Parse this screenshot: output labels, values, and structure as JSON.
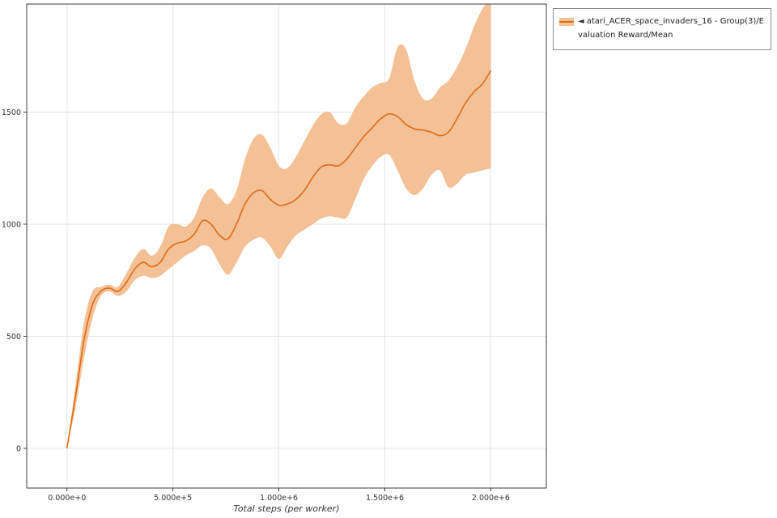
{
  "page": {
    "background": "#ffffff"
  },
  "legend": {
    "marker": "◄",
    "label": "atari_ACER_space_invaders_16 - Group(3)/Evaluation Reward/Mean",
    "swatch_fill_color": "#f4c095",
    "swatch_line_color": "#dd6c16"
  },
  "chart_data": {
    "type": "line",
    "title": "",
    "xlabel": "Total steps (per worker)",
    "ylabel": "",
    "grid": true,
    "legend_position": "top-right outside plot",
    "xlim": [
      -190000,
      2262000
    ],
    "ylim": [
      -177,
      1982
    ],
    "xticks": [
      0,
      500000,
      1000000,
      1500000,
      2000000
    ],
    "xtick_labels": [
      "0.000e+0",
      "5.000e+5",
      "1.000e+6",
      "1.500e+6",
      "2.000e+6"
    ],
    "yticks": [
      0,
      500,
      1000,
      1500
    ],
    "ytick_labels": [
      "0",
      "500",
      "1000",
      "1500"
    ],
    "colors": {
      "line": "#dd6c16",
      "band": "#f4c095",
      "grid": "#e4e4e4",
      "spine": "#262626",
      "tick_label": "#333333"
    },
    "series": [
      {
        "name": "atari_ACER_space_invaders_16 - Group(3)/Evaluation Reward/Mean",
        "color": "#dd6c16",
        "band_color": "#f4c095",
        "x": [
          0,
          40000,
          80000,
          120000,
          160000,
          200000,
          240000,
          280000,
          320000,
          360000,
          400000,
          440000,
          480000,
          520000,
          560000,
          600000,
          640000,
          680000,
          720000,
          760000,
          800000,
          840000,
          880000,
          920000,
          960000,
          1000000,
          1040000,
          1080000,
          1120000,
          1160000,
          1200000,
          1240000,
          1280000,
          1320000,
          1360000,
          1400000,
          1440000,
          1480000,
          1520000,
          1560000,
          1600000,
          1640000,
          1680000,
          1720000,
          1760000,
          1800000,
          1840000,
          1880000,
          1920000,
          1960000,
          2000000
        ],
        "mean": [
          0,
          230,
          480,
          640,
          700,
          715,
          700,
          740,
          800,
          830,
          810,
          830,
          890,
          915,
          925,
          955,
          1015,
          1000,
          950,
          935,
          1000,
          1090,
          1140,
          1150,
          1110,
          1085,
          1090,
          1110,
          1150,
          1210,
          1255,
          1265,
          1260,
          1290,
          1340,
          1390,
          1430,
          1470,
          1492,
          1480,
          1445,
          1425,
          1420,
          1410,
          1395,
          1410,
          1470,
          1540,
          1590,
          1625,
          1685
        ],
        "upper": [
          0,
          280,
          560,
          700,
          720,
          730,
          720,
          780,
          850,
          890,
          860,
          900,
          990,
          1000,
          990,
          1030,
          1120,
          1160,
          1120,
          1090,
          1150,
          1290,
          1380,
          1400,
          1340,
          1260,
          1250,
          1300,
          1370,
          1440,
          1490,
          1500,
          1450,
          1450,
          1520,
          1570,
          1610,
          1630,
          1650,
          1790,
          1780,
          1640,
          1560,
          1560,
          1610,
          1640,
          1700,
          1780,
          1880,
          1960,
          2010
        ],
        "lower": [
          0,
          180,
          400,
          580,
          680,
          700,
          680,
          700,
          750,
          770,
          760,
          770,
          800,
          830,
          860,
          880,
          905,
          890,
          820,
          775,
          830,
          900,
          930,
          940,
          900,
          845,
          900,
          950,
          975,
          1000,
          1025,
          1035,
          1030,
          1030,
          1110,
          1200,
          1260,
          1300,
          1310,
          1240,
          1160,
          1130,
          1160,
          1220,
          1240,
          1165,
          1180,
          1220,
          1230,
          1240,
          1250
        ]
      }
    ]
  }
}
